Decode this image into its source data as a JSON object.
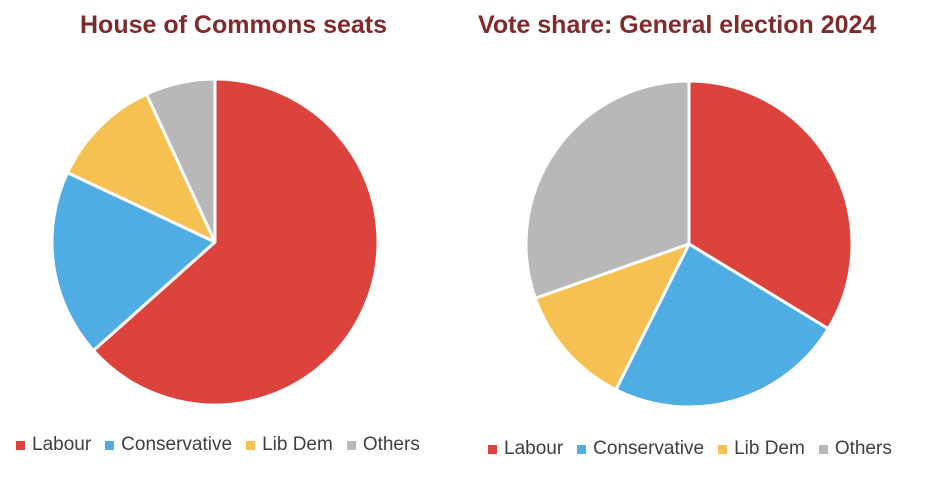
{
  "chart_data": [
    {
      "type": "pie",
      "title": "House of Commons seats",
      "categories": [
        "Labour",
        "Conservative",
        "Lib Dem",
        "Others"
      ],
      "values": [
        63.4,
        18.6,
        11.1,
        6.9
      ],
      "colors": [
        "#db433c",
        "#50ade3",
        "#f4c152",
        "#b8b8ba"
      ],
      "legend": "bottom",
      "title_color": "#7f2b2b",
      "start_angle_deg": 0,
      "direction": "clockwise"
    },
    {
      "type": "pie",
      "title": "Vote share: General election 2024",
      "categories": [
        "Labour",
        "Conservative",
        "Lib Dem",
        "Others"
      ],
      "values": [
        33.7,
        23.7,
        12.2,
        30.4
      ],
      "colors": [
        "#db433c",
        "#50ade3",
        "#f4c152",
        "#b8b8ba"
      ],
      "legend": "bottom",
      "title_color": "#7f2b2b",
      "start_angle_deg": 0,
      "direction": "clockwise"
    }
  ]
}
